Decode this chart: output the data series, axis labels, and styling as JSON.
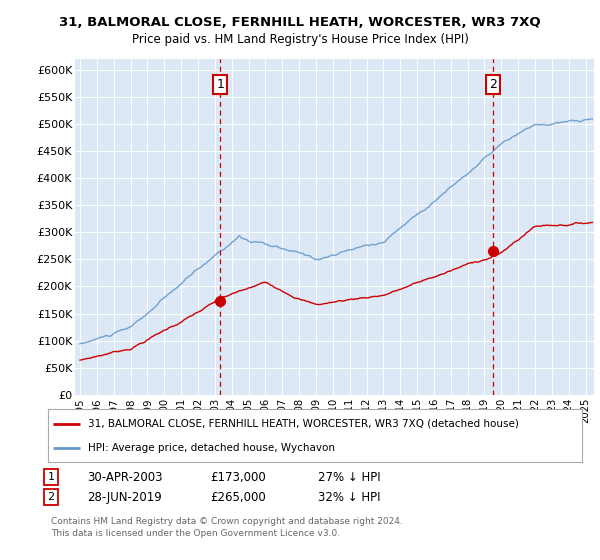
{
  "title": "31, BALMORAL CLOSE, FERNHILL HEATH, WORCESTER, WR3 7XQ",
  "subtitle": "Price paid vs. HM Land Registry's House Price Index (HPI)",
  "ylim": [
    0,
    620000
  ],
  "yticks": [
    0,
    50000,
    100000,
    150000,
    200000,
    250000,
    300000,
    350000,
    400000,
    450000,
    500000,
    550000,
    600000
  ],
  "ytick_labels": [
    "£0",
    "£50K",
    "£100K",
    "£150K",
    "£200K",
    "£250K",
    "£300K",
    "£350K",
    "£400K",
    "£450K",
    "£500K",
    "£550K",
    "£600K"
  ],
  "xlim_start": 1994.7,
  "xlim_end": 2025.5,
  "sale1_x": 2003.33,
  "sale1_y": 173000,
  "sale2_x": 2019.5,
  "sale2_y": 265000,
  "sale1_date": "30-APR-2003",
  "sale1_price": "£173,000",
  "sale1_hpi": "27% ↓ HPI",
  "sale2_date": "28-JUN-2019",
  "sale2_price": "£265,000",
  "sale2_hpi": "32% ↓ HPI",
  "legend_line1": "31, BALMORAL CLOSE, FERNHILL HEATH, WORCESTER, WR3 7XQ (detached house)",
  "legend_line2": "HPI: Average price, detached house, Wychavon",
  "footer1": "Contains HM Land Registry data © Crown copyright and database right 2024.",
  "footer2": "This data is licensed under the Open Government Licence v3.0.",
  "red_color": "#cc0000",
  "blue_color": "#6699cc",
  "plot_bg": "#dce8f5"
}
